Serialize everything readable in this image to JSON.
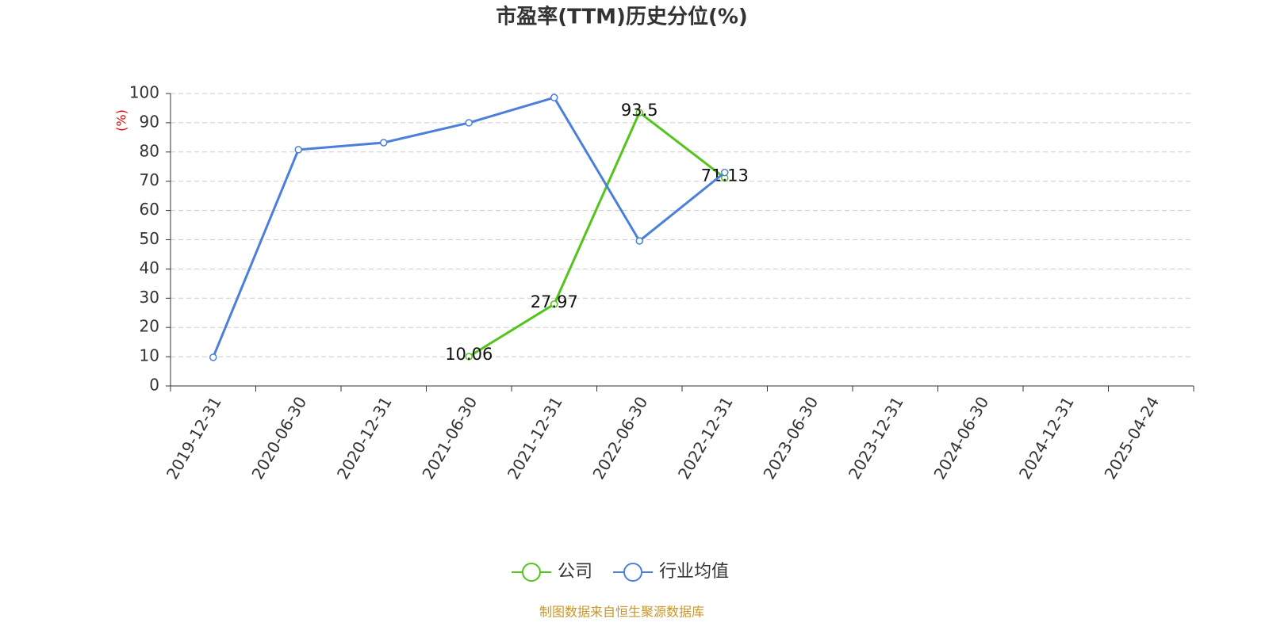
{
  "chart_data": {
    "type": "line",
    "title": "市盈率(TTM)历史分位(%)",
    "y_label": "(%)",
    "categories": [
      "2019-12-31",
      "2020-06-30",
      "2020-12-31",
      "2021-06-30",
      "2021-12-31",
      "2022-06-30",
      "2022-12-31",
      "2023-06-30",
      "2023-12-31",
      "2024-06-30",
      "2024-12-31",
      "2025-04-24"
    ],
    "series": [
      {
        "name": "公司",
        "color": "#52c41a",
        "values": [
          null,
          null,
          null,
          10.06,
          27.97,
          93.5,
          71.13,
          null,
          null,
          null,
          null,
          null
        ],
        "show_labels": true
      },
      {
        "name": "行业均值",
        "color": "#4a7fdc",
        "values": [
          9.8,
          80.8,
          83.2,
          90,
          98.6,
          49.6,
          73,
          null,
          null,
          null,
          null,
          null
        ],
        "show_labels": false
      }
    ],
    "ylim": [
      0,
      100
    ],
    "yticks": [
      0,
      10,
      20,
      30,
      40,
      50,
      60,
      70,
      80,
      90,
      100
    ],
    "grid": true,
    "legend": "bottom",
    "source": "制图数据来自恒生聚源数据库"
  }
}
